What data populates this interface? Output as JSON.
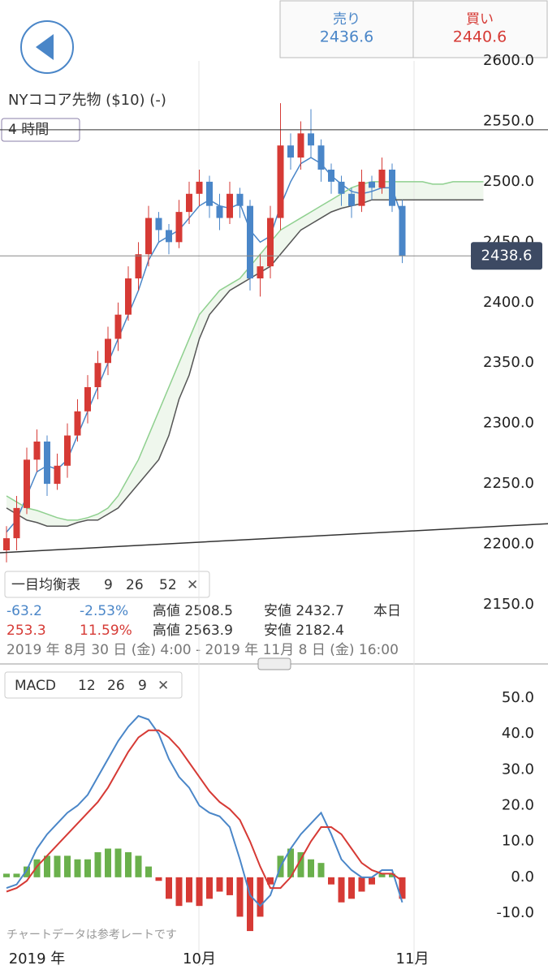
{
  "header": {
    "sell_label": "売り",
    "sell_price": "2436.6",
    "buy_label": "買い",
    "buy_price": "2440.6",
    "title": "NYココア先物 ($10) (-)",
    "timeframe": "4 時間"
  },
  "indicator": {
    "name": "一目均衡表",
    "params": [
      "9",
      "26",
      "52"
    ],
    "rows": [
      [
        "-63.2",
        "-2.53%",
        "高値 2508.5",
        "安値 2432.7",
        "本日"
      ],
      [
        "253.3",
        "11.59%",
        "高値 2563.9",
        "安値 2182.4"
      ]
    ],
    "range": "2019 年 8月 30 日 (金) 4:00 - 2019 年 11月 8 日 (金) 16:00"
  },
  "note": "チャートデータは参考レートです",
  "chart_data": [
    {
      "type": "candlestick",
      "up_color": "#d63a35",
      "down_color": "#4a86c8",
      "opens": [
        2195,
        2205,
        2230,
        2270,
        2285,
        2250,
        2265,
        2290,
        2310,
        2330,
        2350,
        2370,
        2390,
        2420,
        2440,
        2470,
        2460,
        2450,
        2475,
        2490,
        2500,
        2480,
        2470,
        2490,
        2480,
        2420,
        2430,
        2470,
        2530,
        2520,
        2540,
        2530,
        2510,
        2500,
        2490,
        2480,
        2500,
        2495,
        2510,
        2480
      ],
      "highs": [
        2215,
        2240,
        2280,
        2295,
        2290,
        2275,
        2300,
        2320,
        2340,
        2360,
        2380,
        2400,
        2430,
        2450,
        2480,
        2475,
        2465,
        2485,
        2500,
        2510,
        2505,
        2490,
        2500,
        2495,
        2485,
        2440,
        2480,
        2565,
        2540,
        2550,
        2560,
        2535,
        2515,
        2505,
        2495,
        2510,
        2505,
        2520,
        2515,
        2485
      ],
      "lows": [
        2185,
        2195,
        2225,
        2260,
        2240,
        2245,
        2255,
        2285,
        2300,
        2320,
        2340,
        2360,
        2385,
        2410,
        2430,
        2450,
        2440,
        2445,
        2465,
        2480,
        2470,
        2460,
        2465,
        2470,
        2410,
        2405,
        2420,
        2460,
        2510,
        2510,
        2520,
        2500,
        2490,
        2480,
        2470,
        2475,
        2485,
        2490,
        2475,
        2432.7
      ],
      "closes": [
        2205,
        2230,
        2270,
        2285,
        2250,
        2265,
        2290,
        2310,
        2330,
        2350,
        2370,
        2390,
        2420,
        2440,
        2470,
        2460,
        2450,
        2475,
        2490,
        2500,
        2480,
        2470,
        2490,
        2480,
        2420,
        2430,
        2470,
        2530,
        2520,
        2540,
        2530,
        2510,
        2500,
        2490,
        2480,
        2500,
        2495,
        2510,
        2480,
        2438.6
      ],
      "lines": [
        {
          "color": "#4a86c8",
          "values": [
            2210,
            2220,
            2240,
            2260,
            2265,
            2262,
            2270,
            2290,
            2310,
            2330,
            2350,
            2370,
            2390,
            2410,
            2435,
            2450,
            2455,
            2460,
            2470,
            2480,
            2485,
            2480,
            2478,
            2482,
            2460,
            2450,
            2455,
            2480,
            2500,
            2515,
            2520,
            2515,
            2505,
            2498,
            2492,
            2490,
            2492,
            2495,
            2495,
            2470
          ]
        },
        {
          "color": "#8fd08f",
          "values": [
            2240,
            2235,
            2230,
            2228,
            2225,
            2222,
            2220,
            2220,
            2222,
            2225,
            2230,
            2240,
            2255,
            2270,
            2290,
            2310,
            2330,
            2350,
            2370,
            2390,
            2400,
            2410,
            2415,
            2420,
            2430,
            2440,
            2450,
            2460,
            2465,
            2470,
            2475,
            2480,
            2485,
            2490,
            2495,
            2498,
            2500,
            2500,
            2500,
            2500,
            2500,
            2500,
            2498,
            2498,
            2500,
            2500,
            2500,
            2500
          ]
        },
        {
          "color": "#555555",
          "values": [
            2230,
            2225,
            2220,
            2218,
            2215,
            2215,
            2215,
            2218,
            2220,
            2220,
            2225,
            2230,
            2240,
            2250,
            2260,
            2270,
            2290,
            2320,
            2340,
            2370,
            2390,
            2400,
            2410,
            2415,
            2420,
            2425,
            2430,
            2440,
            2450,
            2460,
            2465,
            2470,
            2475,
            2478,
            2480,
            2482,
            2485,
            2485,
            2485,
            2485,
            2485,
            2485,
            2485,
            2485,
            2485,
            2485,
            2485,
            2485
          ]
        }
      ],
      "hline": 2543,
      "trend_line": [
        2193,
        2217
      ],
      "ylim": [
        2125,
        2625
      ],
      "yticks": [
        {
          "value": 2150,
          "label": "2150.0"
        },
        {
          "value": 2200,
          "label": "2200.0"
        },
        {
          "value": 2250,
          "label": "2250.0"
        },
        {
          "value": 2300,
          "label": "2300.0"
        },
        {
          "value": 2350,
          "label": "2350.0"
        },
        {
          "value": 2400,
          "label": "2400.0"
        },
        {
          "value": 2450,
          "label": "2450.0"
        },
        {
          "value": 2500,
          "label": "2500.0"
        },
        {
          "value": 2550,
          "label": "2550.0"
        },
        {
          "value": 2600,
          "label": "2600.0"
        }
      ],
      "last": {
        "value": 2438.6,
        "label": "2438.6"
      },
      "xticks": [
        3,
        19,
        40
      ],
      "xtick_labels": [
        "2019 年",
        "10月",
        "11月"
      ]
    },
    {
      "type": "macd",
      "title": "MACD",
      "params": [
        "12",
        "26",
        "9"
      ],
      "macd": {
        "color": "#4a86c8",
        "values": [
          -3,
          -2,
          2,
          8,
          12,
          15,
          18,
          20,
          23,
          28,
          33,
          38,
          42,
          45,
          44,
          40,
          33,
          28,
          25,
          20,
          18,
          17,
          14,
          5,
          -5,
          -8,
          -5,
          3,
          8,
          12,
          15,
          18,
          12,
          5,
          2,
          0,
          0,
          2,
          2,
          -7
        ]
      },
      "signal": {
        "color": "#d63a35",
        "values": [
          -4,
          -3,
          -1,
          3,
          6,
          9,
          12,
          15,
          18,
          21,
          25,
          30,
          35,
          39,
          41,
          41,
          39,
          36,
          32,
          28,
          24,
          21,
          19,
          16,
          10,
          3,
          -3,
          -3,
          0,
          5,
          10,
          14,
          14,
          12,
          8,
          4,
          2,
          1,
          1,
          -1
        ]
      },
      "histogram": {
        "up_color": "#6ab04c",
        "down_color": "#d63a35",
        "values": [
          1,
          1,
          3,
          5,
          6,
          6,
          6,
          5,
          5,
          7,
          8,
          8,
          7,
          6,
          3,
          -1,
          -6,
          -8,
          -7,
          -8,
          -6,
          -4,
          -5,
          -11,
          -15,
          -11,
          -2,
          6,
          8,
          7,
          5,
          4,
          -2,
          -7,
          -6,
          -4,
          -2,
          1,
          1,
          -6
        ]
      },
      "ylim": [
        -13,
        53
      ],
      "yticks": [
        {
          "value": -10,
          "label": "-10.0"
        },
        {
          "value": 0,
          "label": "0.0"
        },
        {
          "value": 10,
          "label": "10.0"
        },
        {
          "value": 20,
          "label": "20.0"
        },
        {
          "value": 30,
          "label": "30.0"
        },
        {
          "value": 40,
          "label": "40.0"
        },
        {
          "value": 50,
          "label": "50.0"
        }
      ]
    }
  ]
}
